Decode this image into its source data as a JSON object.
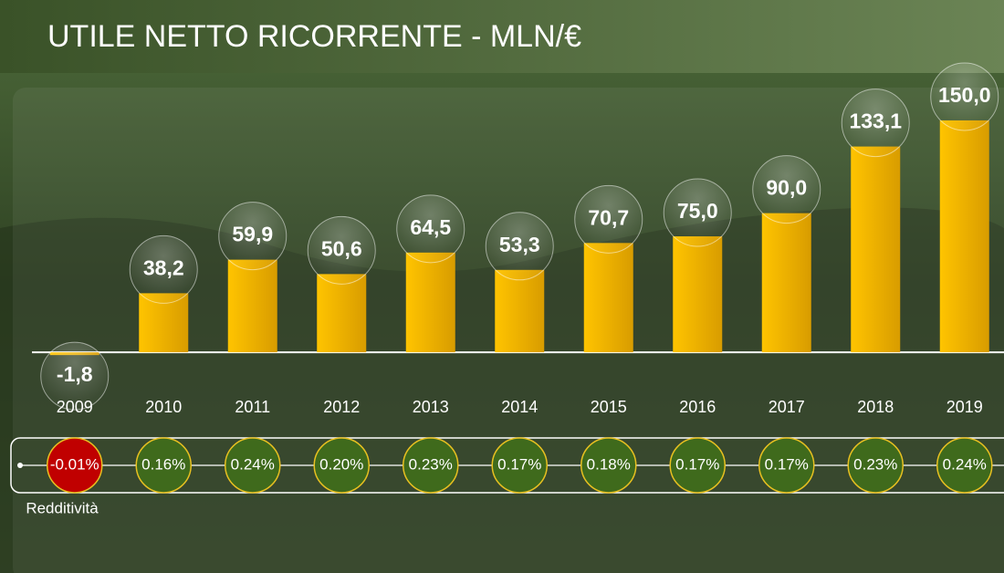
{
  "chart_data": {
    "type": "bar",
    "title": "UTILE NETTO RICORRENTE - MLN/€",
    "categories": [
      "2009",
      "2010",
      "2011",
      "2012",
      "2013",
      "2014",
      "2015",
      "2016",
      "2017",
      "2018",
      "2019"
    ],
    "values": [
      -1.8,
      38.2,
      59.9,
      50.6,
      64.5,
      53.3,
      70.7,
      75.0,
      90.0,
      133.1,
      150.0
    ],
    "value_labels": [
      "-1,8",
      "38,2",
      "59,9",
      "50,6",
      "64,5",
      "53,3",
      "70,7",
      "75,0",
      "90,0",
      "133,1",
      "150,0"
    ],
    "color": "#f5b800",
    "ylim": [
      -20,
      160
    ],
    "redditivita": {
      "name": "Redditività",
      "values": [
        -0.01,
        0.16,
        0.24,
        0.2,
        0.23,
        0.17,
        0.18,
        0.17,
        0.17,
        0.23,
        0.24
      ],
      "value_labels": [
        "-0.01%",
        "0.16%",
        "0.24%",
        "0.20%",
        "0.23%",
        "0.17%",
        "0.18%",
        "0.17%",
        "0.17%",
        "0.23%",
        "0.24%"
      ],
      "positive_color": "#3f6a1c",
      "negative_color": "#c00000"
    }
  }
}
